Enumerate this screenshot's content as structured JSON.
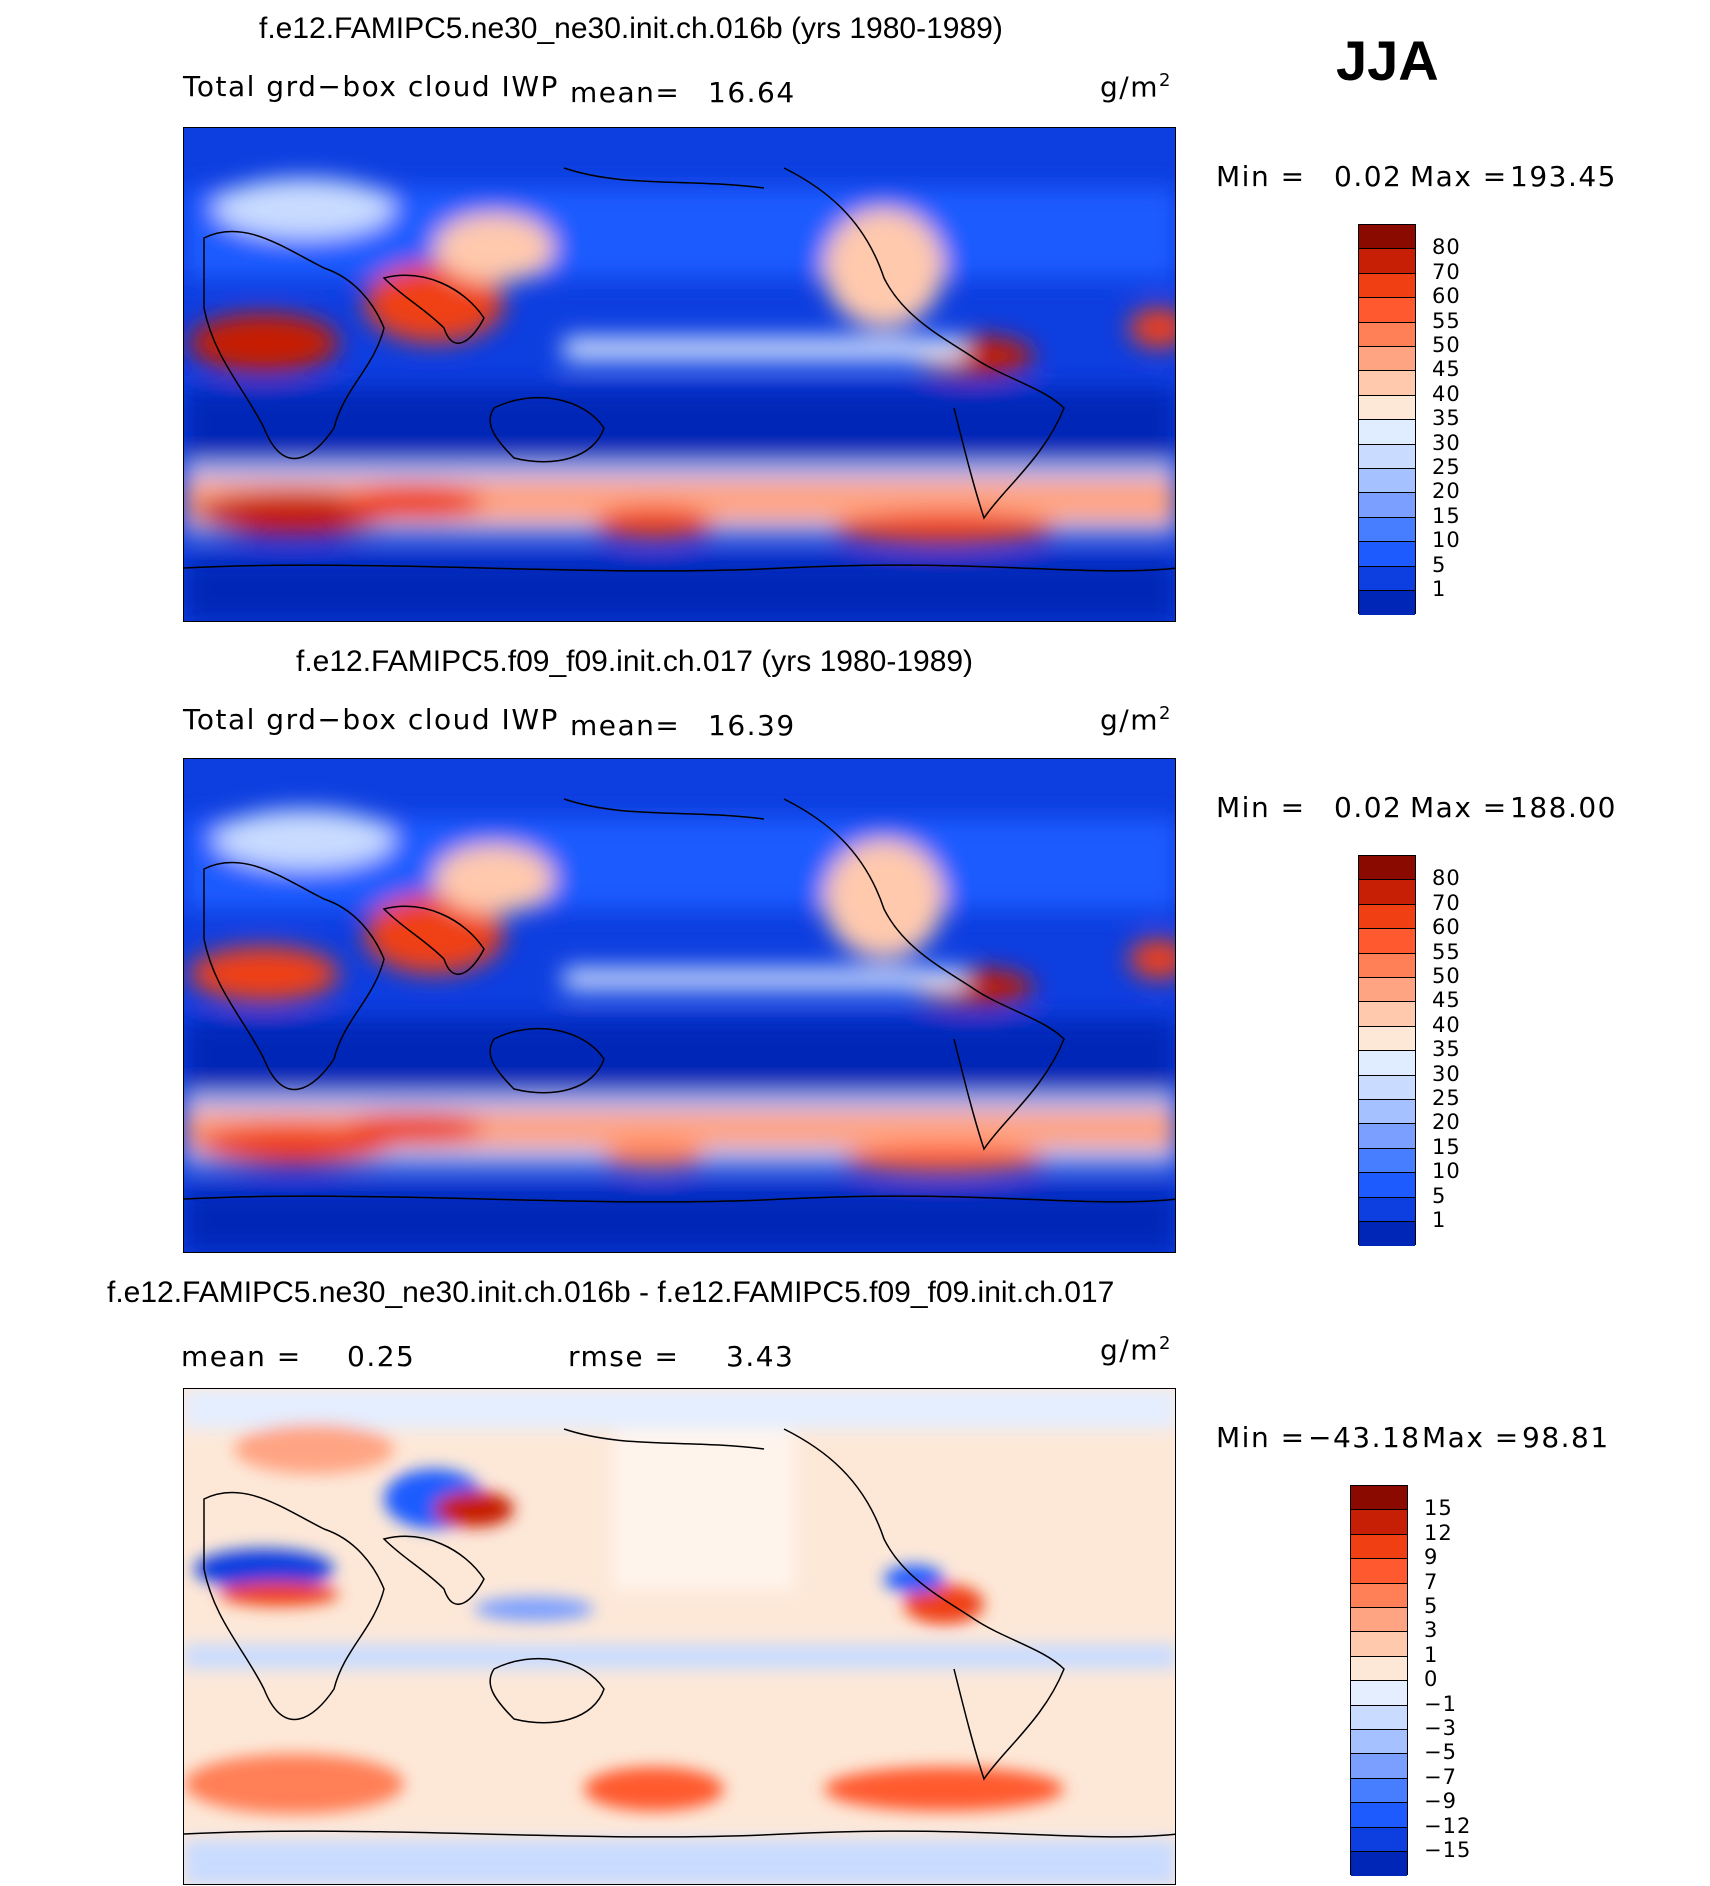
{
  "season": "JJA",
  "colors": {
    "pos_scale": [
      "#000e89",
      "#0026b7",
      "#0d3ee0",
      "#1e5bff",
      "#477dff",
      "#7a9fff",
      "#a6c1ff",
      "#c9dcff",
      "#e0ecff",
      "#fde8d8",
      "#ffc9ad",
      "#ffa483",
      "#ff7f57",
      "#ff5a2f",
      "#ef3f13",
      "#c61f05",
      "#8a0a00"
    ],
    "diff_scale": [
      "#000e89",
      "#0026b7",
      "#0d3ee0",
      "#1e5bff",
      "#477dff",
      "#7a9fff",
      "#a6c1ff",
      "#c9dcff",
      "#e4eeff",
      "#fde8d8",
      "#ffc9ad",
      "#ffa483",
      "#ff7f57",
      "#ff5a2f",
      "#ef3f13",
      "#c61f05",
      "#8a0a00"
    ]
  },
  "chart_data": [
    {
      "type": "heatmap",
      "title": "f.e12.FAMIPC5.ne30_ne30.init.ch.016b (yrs 1980-1989)",
      "variable": "Total grd−box cloud IWP",
      "mean_label": "mean=",
      "mean": "16.64",
      "units": "g/m",
      "units_sup": "2",
      "min_label": "Min =",
      "min": "0.02",
      "max_label": "Max =",
      "max": "193.45",
      "levels": [
        "80",
        "70",
        "60",
        "55",
        "50",
        "45",
        "40",
        "35",
        "30",
        "25",
        "20",
        "15",
        "10",
        "5",
        "1"
      ]
    },
    {
      "type": "heatmap",
      "title": "f.e12.FAMIPC5.f09_f09.init.ch.017 (yrs 1980-1989)",
      "variable": "Total grd−box cloud IWP",
      "mean_label": "mean=",
      "mean": "16.39",
      "units": "g/m",
      "units_sup": "2",
      "min_label": "Min =",
      "min": "0.02",
      "max_label": "Max =",
      "max": "188.00",
      "levels": [
        "80",
        "70",
        "60",
        "55",
        "50",
        "45",
        "40",
        "35",
        "30",
        "25",
        "20",
        "15",
        "10",
        "5",
        "1"
      ]
    },
    {
      "type": "heatmap",
      "title": "f.e12.FAMIPC5.ne30_ne30.init.ch.016b - f.e12.FAMIPC5.f09_f09.init.ch.017",
      "mean_label": "mean =",
      "mean": "0.25",
      "rmse_label": "rmse =",
      "rmse": "3.43",
      "units": "g/m",
      "units_sup": "2",
      "min_label": "Min =",
      "min": "−43.18",
      "max_label": "Max =",
      "max": "98.81",
      "levels": [
        "15",
        "12",
        "9",
        "7",
        "5",
        "3",
        "1",
        "0",
        "−1",
        "−3",
        "−5",
        "−7",
        "−9",
        "−12",
        "−15"
      ]
    }
  ]
}
